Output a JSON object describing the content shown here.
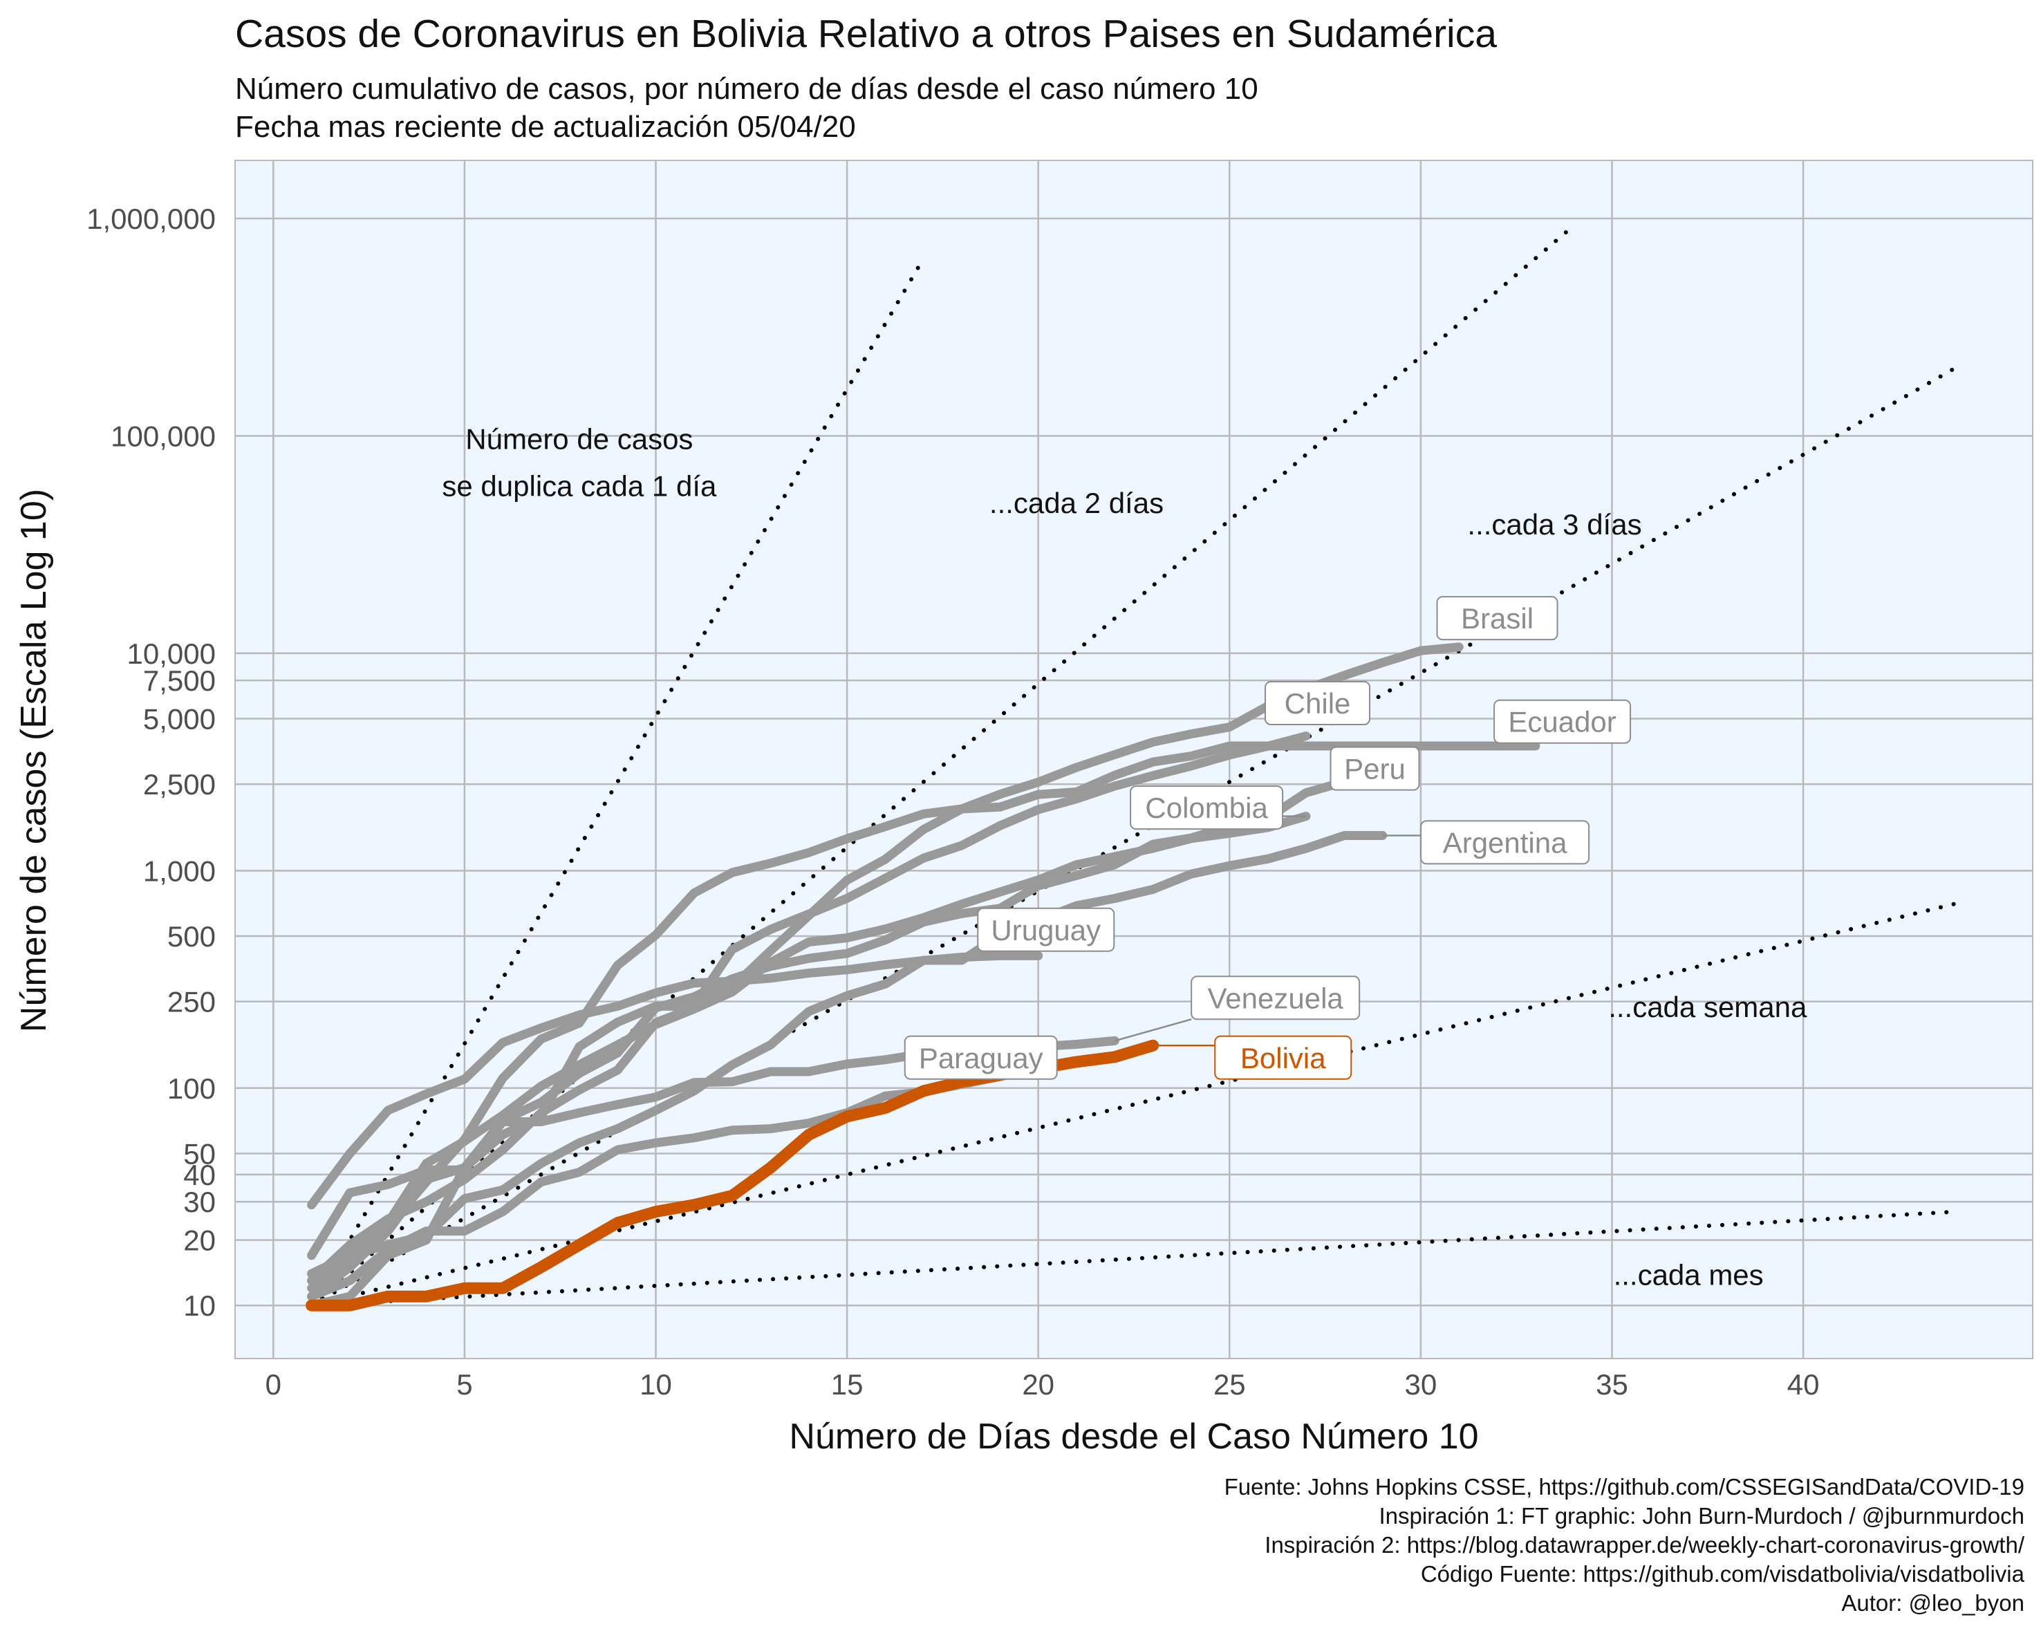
{
  "title": "Casos de Coronavirus en Bolivia Relativo a otros Paises en Sudamérica",
  "subtitle_line1": "Número cumulativo de casos, por número de días desde el caso número 10",
  "subtitle_line2": "Fecha mas reciente de actualización 05/04/20",
  "caption": [
    "Fuente: Johns Hopkins CSSE, https://github.com/CSSEGISandData/COVID-19",
    "Inspiración 1: FT graphic: John Burn-Murdoch / @jburnmurdoch",
    "Inspiración 2: https://blog.datawrapper.de/weekly-chart-coronavirus-growth/",
    "Código Fuente: https://github.com/visdatbolivia/visdatbolivia",
    "Autor: @leo_byon"
  ],
  "colors": {
    "panel_background": "#eef6ff",
    "grid": "#b9b9b9",
    "country_line": "#999999",
    "bolivia": "#cc5500",
    "reference_line": "#000000"
  },
  "chart_data": {
    "type": "line",
    "xlabel": "Número de Días desde el Caso Número 10",
    "ylabel": "Número de casos (Escala Log 10)",
    "y_scale": "log10",
    "xlim": [
      -1,
      46
    ],
    "ylim": [
      5.7,
      1850000
    ],
    "x_ticks": [
      0,
      5,
      10,
      15,
      20,
      25,
      30,
      35,
      40
    ],
    "y_ticks": [
      {
        "value": 10,
        "label": "10"
      },
      {
        "value": 20,
        "label": "20"
      },
      {
        "value": 30,
        "label": "30"
      },
      {
        "value": 40,
        "label": "40"
      },
      {
        "value": 50,
        "label": "50"
      },
      {
        "value": 100,
        "label": "100"
      },
      {
        "value": 250,
        "label": "250"
      },
      {
        "value": 500,
        "label": "500"
      },
      {
        "value": 1000,
        "label": "1,000"
      },
      {
        "value": 2500,
        "label": "2,500"
      },
      {
        "value": 5000,
        "label": "5,000"
      },
      {
        "value": 7500,
        "label": "7,500"
      },
      {
        "value": 10000,
        "label": "10,000"
      },
      {
        "value": 100000,
        "label": "100,000"
      },
      {
        "value": 1000000,
        "label": "1,000,000"
      }
    ],
    "grid": true,
    "reference_lines": [
      {
        "doubling_days": 1,
        "x_end": 17,
        "label_lines": [
          "Número de casos",
          "se duplica cada 1 día"
        ],
        "label_x": 8,
        "label_y": 75000
      },
      {
        "doubling_days": 2,
        "x_end": 34,
        "label_lines": [
          "...cada 2 días"
        ],
        "label_x": 21,
        "label_y": 49000
      },
      {
        "doubling_days": 3,
        "x_end": 44,
        "label_lines": [
          "...cada 3 días"
        ],
        "label_x": 33.5,
        "label_y": 39000
      },
      {
        "doubling_days": 7,
        "x_end": 44,
        "label_lines": [
          "...cada semana"
        ],
        "label_x": 37.5,
        "label_y": 235
      },
      {
        "doubling_days": 30,
        "x_end": 44,
        "label_lines": [
          "...cada mes"
        ],
        "label_x": 37,
        "label_y": 13.8
      }
    ],
    "series": [
      {
        "name": "Brasil",
        "label": "Brasil",
        "label_x": 32,
        "label_y": 14500,
        "x": [
          1,
          2,
          3,
          4,
          5,
          6,
          7,
          8,
          9,
          10,
          11,
          12,
          13,
          14,
          15,
          16,
          17,
          18,
          19,
          20,
          21,
          22,
          23,
          24,
          25,
          26,
          27,
          28,
          29,
          30,
          31
        ],
        "values": [
          13,
          19,
          25,
          30,
          38,
          52,
          77,
          98,
          121,
          200,
          234,
          291,
          428,
          621,
          904,
          1128,
          1546,
          1924,
          2247,
          2554,
          2985,
          3417,
          3904,
          4256,
          4579,
          5717,
          6836,
          7910,
          9056,
          10278,
          10683
        ]
      },
      {
        "name": "Chile",
        "label": "Chile",
        "label_x": 27.3,
        "label_y": 5900,
        "x": [
          1,
          2,
          3,
          4,
          5,
          6,
          7,
          8,
          9,
          10,
          11,
          12,
          13,
          14,
          15,
          16,
          17,
          18,
          19,
          20,
          21,
          22,
          23,
          24,
          25,
          26,
          27
        ],
        "values": [
          10,
          11,
          17,
          20,
          43,
          61,
          74,
          155,
          201,
          238,
          238,
          434,
          537,
          632,
          746,
          922,
          1142,
          1306,
          1610,
          1909,
          2139,
          2449,
          2738,
          3031,
          3404,
          3737,
          4161
        ]
      },
      {
        "name": "Ecuador",
        "label": "Ecuador",
        "label_x": 33.7,
        "label_y": 4850,
        "x": [
          1,
          2,
          3,
          4,
          5,
          6,
          7,
          8,
          9,
          10,
          11,
          12,
          13,
          14,
          15,
          16,
          17,
          18,
          19,
          20,
          21,
          22,
          23,
          24,
          25,
          26,
          27,
          28,
          29,
          30,
          31,
          32,
          33
        ],
        "values": [
          14,
          17,
          23,
          37,
          58,
          111,
          168,
          199,
          367,
          506,
          789,
          981,
          1082,
          1211,
          1403,
          1595,
          1823,
          1924,
          1962,
          2240,
          2302,
          2748,
          3163,
          3368,
          3747,
          3747,
          3747,
          3747,
          3747,
          3747,
          3747,
          3747,
          3747
        ]
      },
      {
        "name": "Peru",
        "label": "Peru",
        "label_x": 28.8,
        "label_y": 2950,
        "x": [
          1,
          2,
          3,
          4,
          5,
          6,
          7,
          8,
          9,
          10,
          11,
          12,
          13,
          14,
          15,
          16,
          17,
          18,
          19,
          20,
          21,
          22,
          23,
          24,
          25,
          26,
          27,
          28
        ],
        "values": [
          11,
          15,
          22,
          38,
          43,
          71,
          86,
          117,
          145,
          234,
          263,
          318,
          363,
          395,
          416,
          480,
          580,
          635,
          671,
          852,
          950,
          1065,
          1323,
          1414,
          1595,
          1746,
          2281,
          2561
        ]
      },
      {
        "name": "Colombia",
        "label": "Colombia",
        "label_x": 24.4,
        "label_y": 1950,
        "x": [
          1,
          2,
          3,
          4,
          5,
          6,
          7,
          8,
          9,
          10,
          11,
          12,
          13,
          14,
          15,
          16,
          17,
          18,
          19,
          20,
          21,
          22,
          23,
          24,
          25,
          26,
          27
        ],
        "values": [
          13,
          16,
          24,
          45,
          57,
          75,
          102,
          128,
          158,
          196,
          231,
          277,
          378,
          470,
          491,
          539,
          608,
          702,
          798,
          906,
          1065,
          1161,
          1267,
          1406,
          1485,
          1579,
          1780
        ]
      },
      {
        "name": "Argentina",
        "label": "Argentina",
        "label_x": 32.2,
        "label_y": 1350,
        "x": [
          1,
          2,
          3,
          4,
          5,
          6,
          7,
          8,
          9,
          10,
          11,
          12,
          13,
          14,
          15,
          16,
          17,
          18,
          19,
          20,
          21,
          22,
          23,
          24,
          25,
          26,
          27,
          28,
          29
        ],
        "values": [
          12,
          17,
          19,
          21,
          31,
          34,
          45,
          56,
          65,
          79,
          97,
          128,
          158,
          225,
          266,
          301,
          387,
          387,
          502,
          589,
          690,
          745,
          820,
          966,
          1054,
          1133,
          1265,
          1451,
          1451
        ]
      },
      {
        "name": "Uruguay",
        "label": "Uruguay",
        "label_x": 20.2,
        "label_y": 535,
        "x": [
          1,
          2,
          3,
          4,
          5,
          6,
          7,
          8,
          9,
          10,
          11,
          12,
          13,
          14,
          15,
          16,
          17,
          18,
          19,
          20
        ],
        "values": [
          29,
          50,
          79,
          94,
          110,
          162,
          189,
          217,
          238,
          274,
          304,
          310,
          320,
          338,
          350,
          369,
          386,
          400,
          406,
          406
        ]
      },
      {
        "name": "Venezuela",
        "label": "Venezuela",
        "label_x": 26.2,
        "label_y": 260,
        "x": [
          1,
          2,
          3,
          4,
          5,
          6,
          7,
          8,
          9,
          10,
          11,
          12,
          13,
          14,
          15,
          16,
          17,
          18,
          19,
          20,
          21,
          22
        ],
        "values": [
          17,
          33,
          36,
          42,
          42,
          70,
          70,
          77,
          84,
          91,
          106,
          107,
          119,
          119,
          129,
          135,
          144,
          146,
          153,
          155,
          159,
          165
        ]
      },
      {
        "name": "Paraguay",
        "label": "Paraguay",
        "label_x": 18.5,
        "label_y": 138,
        "x": [
          1,
          2,
          3,
          4,
          5,
          6,
          7,
          8,
          9,
          10,
          11,
          12,
          13,
          14,
          15,
          16,
          17,
          18,
          19
        ],
        "values": [
          11,
          13,
          18,
          22,
          22,
          27,
          37,
          41,
          52,
          56,
          59,
          64,
          65,
          69,
          77,
          92,
          96,
          104,
          113
        ]
      },
      {
        "name": "Bolivia",
        "label": "Bolivia",
        "label_x": 26.4,
        "label_y": 138,
        "x": [
          1,
          2,
          3,
          4,
          5,
          6,
          7,
          8,
          9,
          10,
          11,
          12,
          13,
          14,
          15,
          16,
          17,
          18,
          19,
          20,
          21,
          22,
          23
        ],
        "values": [
          10,
          10,
          11,
          11,
          12,
          12,
          15,
          19,
          24,
          27,
          29,
          32,
          43,
          61,
          74,
          81,
          97,
          107,
          115,
          123,
          132,
          139,
          157
        ]
      }
    ]
  }
}
